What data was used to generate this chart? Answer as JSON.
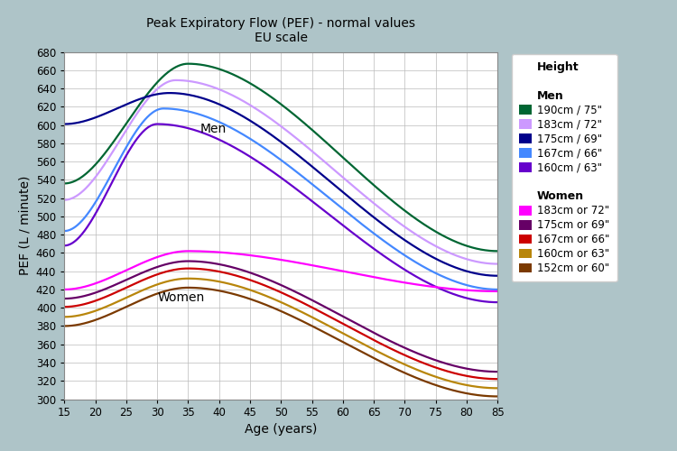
{
  "title_line1": "Peak Expiratory Flow (PEF) - normal values",
  "title_line2": "EU scale",
  "xlabel": "Age (years)",
  "ylabel": "PEF (L / minute)",
  "xlim": [
    15,
    85
  ],
  "ylim": [
    300,
    680
  ],
  "xticks": [
    15,
    20,
    25,
    30,
    35,
    40,
    45,
    50,
    55,
    60,
    65,
    70,
    75,
    80,
    85
  ],
  "yticks": [
    300,
    320,
    340,
    360,
    380,
    400,
    420,
    440,
    460,
    480,
    500,
    520,
    540,
    560,
    580,
    600,
    620,
    640,
    660,
    680
  ],
  "background_color": "#aec4c8",
  "plot_bg_color": "#ffffff",
  "men_label_age": 37,
  "men_label_pef": 592,
  "women_label_age": 30,
  "women_label_pef": 407,
  "men_series": [
    {
      "label": "190cm / 75\"",
      "color": "#006633",
      "peak_age": 35,
      "peak_pef": 667,
      "age15_pef": 536,
      "age85_pef": 462
    },
    {
      "label": "183cm / 72\"",
      "color": "#cc99ff",
      "peak_age": 33,
      "peak_pef": 649,
      "age15_pef": 518,
      "age85_pef": 448
    },
    {
      "label": "175cm / 69\"",
      "color": "#00008b",
      "peak_age": 32,
      "peak_pef": 635,
      "age15_pef": 601,
      "age85_pef": 435
    },
    {
      "label": "167cm / 66\"",
      "color": "#4488ff",
      "peak_age": 31,
      "peak_pef": 618,
      "age15_pef": 484,
      "age85_pef": 420
    },
    {
      "label": "160cm / 63\"",
      "color": "#6600cc",
      "peak_age": 30,
      "peak_pef": 601,
      "age15_pef": 468,
      "age85_pef": 406
    }
  ],
  "women_series": [
    {
      "label": "183cm or 72\"",
      "color": "#ff00ff",
      "peak_age": 35,
      "peak_pef": 462,
      "age15_pef": 420,
      "age85_pef": 418
    },
    {
      "label": "175cm or 69\"",
      "color": "#660066",
      "peak_age": 35,
      "peak_pef": 451,
      "age15_pef": 410,
      "age85_pef": 330
    },
    {
      "label": "167cm or 66\"",
      "color": "#cc0000",
      "peak_age": 35,
      "peak_pef": 443,
      "age15_pef": 401,
      "age85_pef": 322
    },
    {
      "label": "160cm or 63\"",
      "color": "#b8860b",
      "peak_age": 35,
      "peak_pef": 432,
      "age15_pef": 390,
      "age85_pef": 312
    },
    {
      "label": "152cm or 60\"",
      "color": "#7b3a00",
      "peak_age": 35,
      "peak_pef": 422,
      "age15_pef": 380,
      "age85_pef": 303
    }
  ]
}
